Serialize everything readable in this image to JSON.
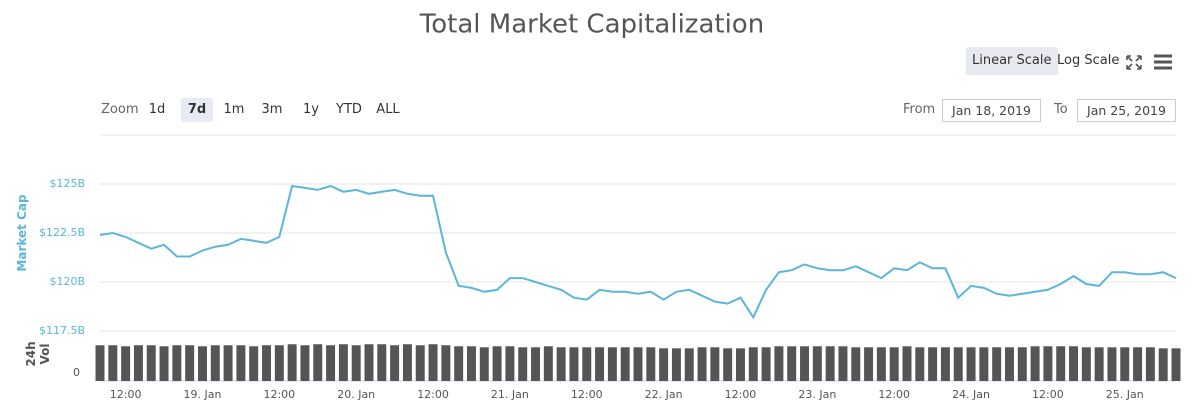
{
  "controls": {
    "scale_buttons": [
      "Linear Scale",
      "Log Scale"
    ],
    "zoom_label": "Zoom",
    "zoom_buttons": [
      "1d",
      "7d",
      "1m",
      "3m",
      "1y",
      "YTD",
      "ALL"
    ],
    "from_label": "From",
    "from_date": "Jan 18, 2019",
    "to_label": "To",
    "to_date": "Jan 25, 2019"
  },
  "chart_data": [
    {
      "type": "line",
      "title": "Total Market Capitalization",
      "y_label": "Market Cap",
      "color": "#5cb6da",
      "categories": [
        null,
        null,
        "12:00",
        null,
        null,
        null,
        null,
        null,
        "19. Jan",
        null,
        null,
        null,
        null,
        null,
        "12:00",
        null,
        null,
        null,
        null,
        null,
        "20. Jan",
        null,
        null,
        null,
        null,
        null,
        "12:00",
        null,
        null,
        null,
        null,
        null,
        "21. Jan",
        null,
        null,
        null,
        null,
        null,
        "12:00",
        null,
        null,
        null,
        null,
        null,
        "22. Jan",
        null,
        null,
        null,
        null,
        null,
        "12:00",
        null,
        null,
        null,
        null,
        null,
        "23. Jan",
        null,
        null,
        null,
        null,
        null,
        "12:00",
        null,
        null,
        null,
        null,
        null,
        "24. Jan",
        null,
        null,
        null,
        null,
        null,
        "12:00",
        null,
        null,
        null,
        null,
        null,
        "25. Jan",
        null,
        null,
        null,
        null
      ],
      "values": [
        122.4,
        122.5,
        122.3,
        122.0,
        121.7,
        121.9,
        121.3,
        121.3,
        121.6,
        121.8,
        121.9,
        122.2,
        122.1,
        122.0,
        122.3,
        124.9,
        124.8,
        124.7,
        124.9,
        124.6,
        124.7,
        124.5,
        124.6,
        124.7,
        124.5,
        124.4,
        124.4,
        121.5,
        119.8,
        119.7,
        119.5,
        119.6,
        120.2,
        120.2,
        120.0,
        119.8,
        119.6,
        119.2,
        119.1,
        119.6,
        119.5,
        119.5,
        119.4,
        119.5,
        119.1,
        119.5,
        119.6,
        119.3,
        119.0,
        118.9,
        119.2,
        118.2,
        119.6,
        120.5,
        120.6,
        120.9,
        120.7,
        120.6,
        120.6,
        120.8,
        120.5,
        120.2,
        120.7,
        120.6,
        121.0,
        120.7,
        120.7,
        119.2,
        119.8,
        119.7,
        119.4,
        119.3,
        119.4,
        119.5,
        119.6,
        119.9,
        120.3,
        119.9,
        119.8,
        120.5,
        120.5,
        120.4,
        120.4,
        120.5,
        120.2
      ],
      "ylim": [
        117.5,
        127.5
      ],
      "yticks": [
        {
          "value": 117.5,
          "label": "$117.5B"
        },
        {
          "value": 120,
          "label": "$120B"
        },
        {
          "value": 122.5,
          "label": "$122.5B"
        },
        {
          "value": 125,
          "label": "$125B"
        }
      ],
      "grid": true
    },
    {
      "type": "bar",
      "y_label": "24h Vol",
      "color": "#555555",
      "values": [
        35,
        35,
        34,
        35,
        35,
        34,
        35,
        35,
        34,
        35,
        35,
        35,
        34,
        35,
        35,
        36,
        35,
        36,
        35,
        36,
        35,
        36,
        36,
        35,
        36,
        35,
        36,
        35,
        34,
        34,
        33,
        34,
        34,
        33,
        33,
        34,
        33,
        33,
        33,
        33,
        33,
        33,
        33,
        33,
        32,
        32,
        32,
        33,
        33,
        32,
        32,
        33,
        33,
        34,
        34,
        34,
        34,
        34,
        34,
        33,
        33,
        33,
        33,
        34,
        33,
        33,
        33,
        33,
        33,
        33,
        33,
        33,
        33,
        34,
        34,
        34,
        34,
        33,
        33,
        33,
        33,
        33,
        33,
        32,
        32
      ],
      "ylim": [
        0,
        47
      ],
      "yticks": [
        0
      ]
    }
  ]
}
